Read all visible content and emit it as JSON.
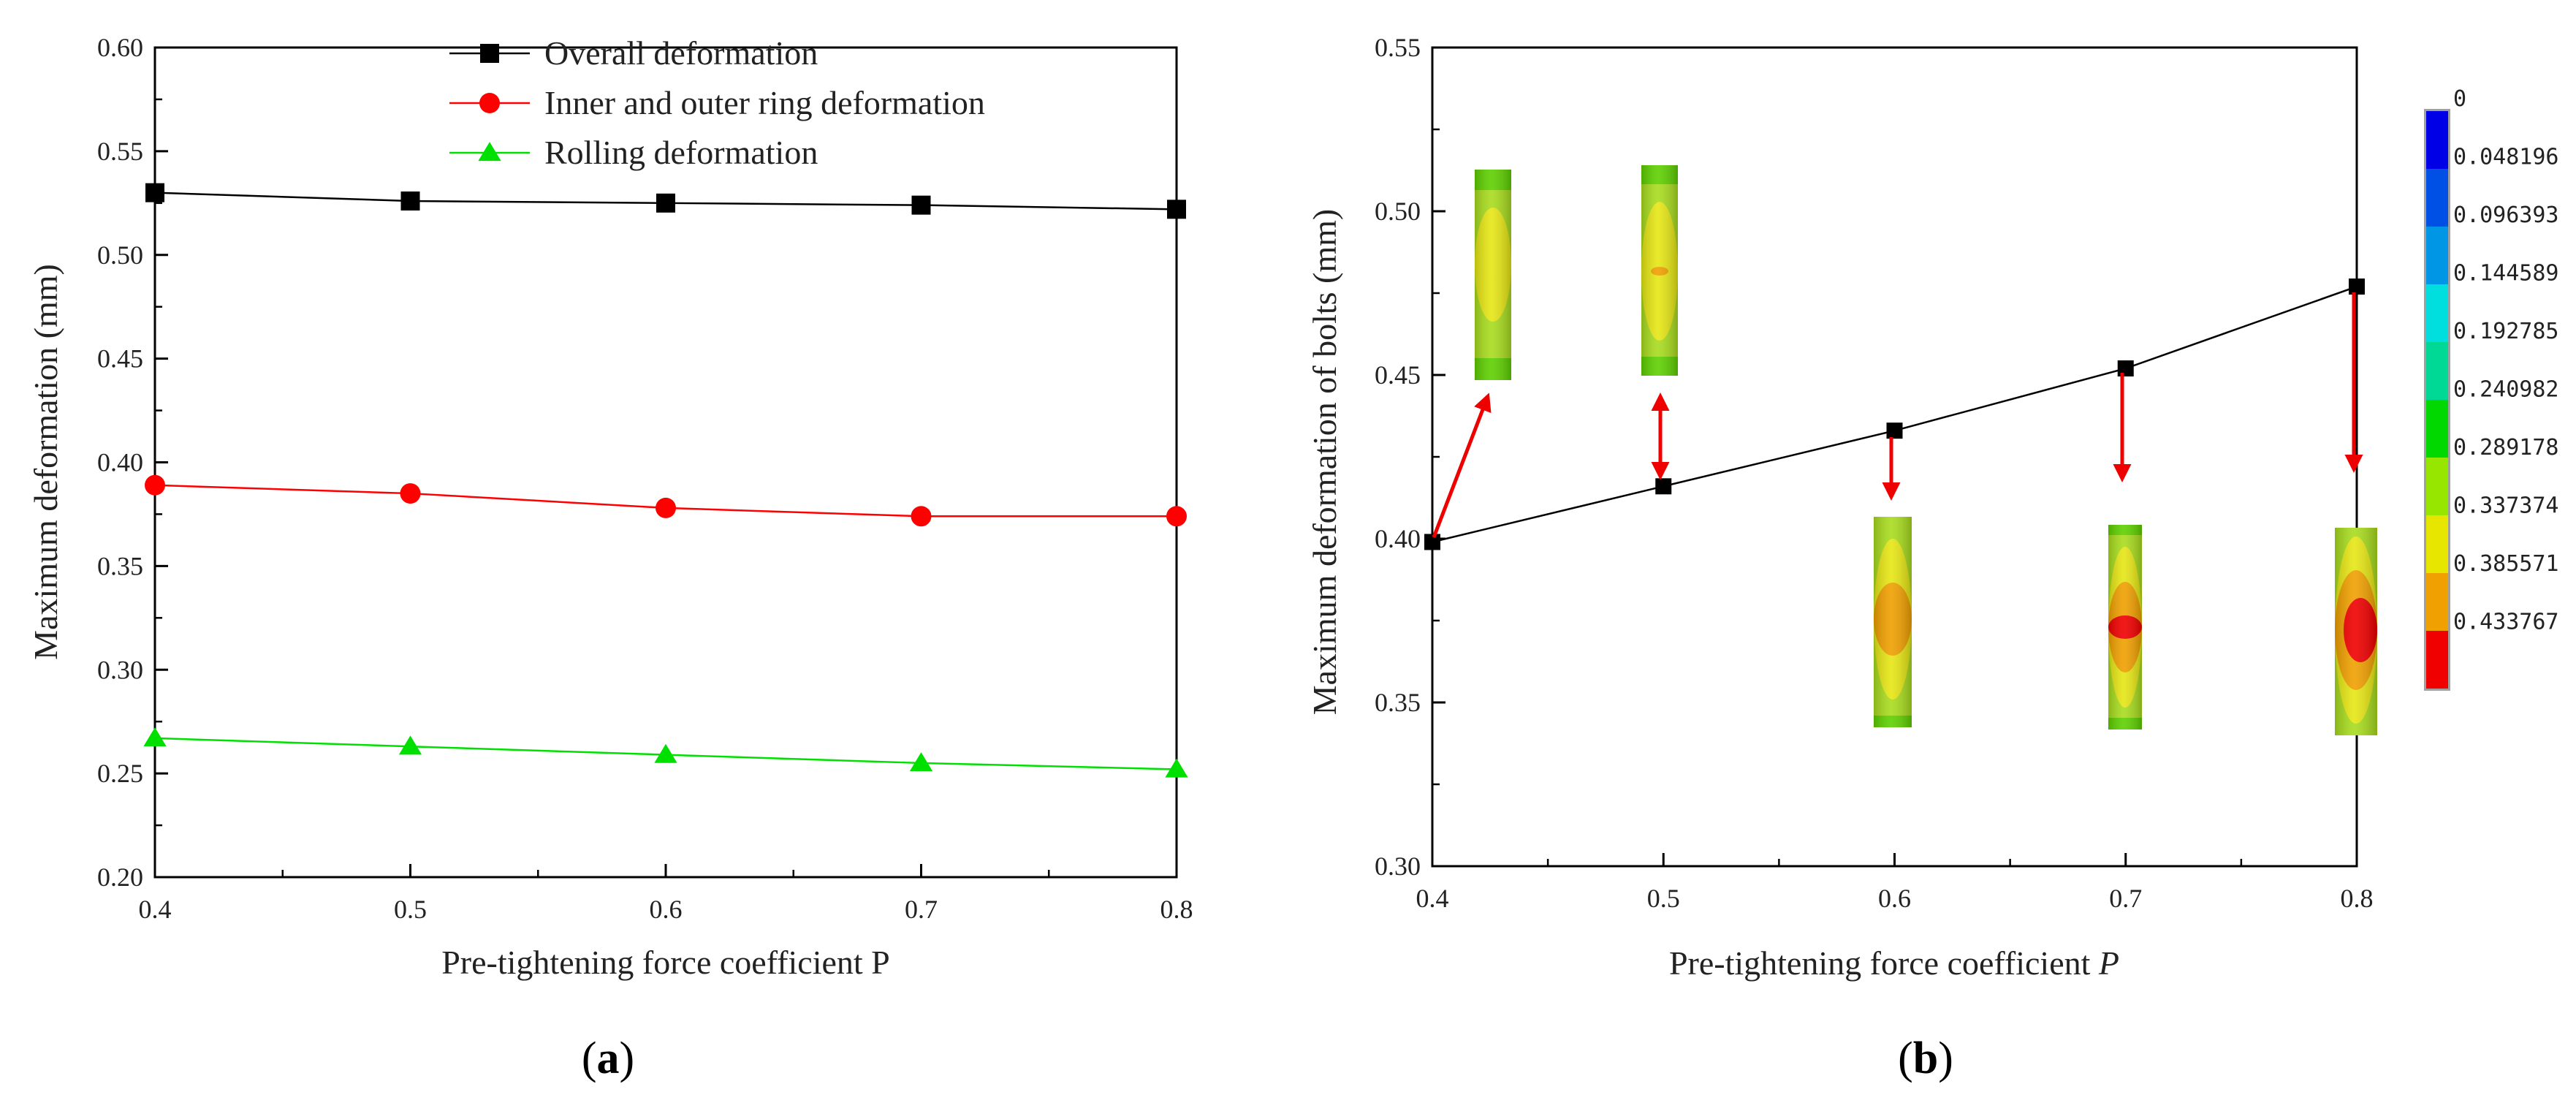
{
  "chart_data": [
    {
      "type": "line",
      "panel_label_pre": "(",
      "panel_label_letter": "a",
      "panel_label_post": ")",
      "xlabel": "Pre-tightening force coefficient P",
      "ylabel": "Maximum deformation (mm)",
      "xlim": [
        0.4,
        0.8
      ],
      "ylim": [
        0.2,
        0.6
      ],
      "xticks": [
        "0.4",
        "0.5",
        "0.6",
        "0.7",
        "0.8"
      ],
      "yticks": [
        "0.20",
        "0.25",
        "0.30",
        "0.35",
        "0.40",
        "0.45",
        "0.50",
        "0.55",
        "0.60"
      ],
      "x": [
        0.4,
        0.5,
        0.6,
        0.7,
        0.8
      ],
      "legend_position": "top-center",
      "series": [
        {
          "name": "Overall deformation",
          "marker": "square",
          "color": "#000000",
          "values": [
            0.53,
            0.526,
            0.525,
            0.524,
            0.522
          ]
        },
        {
          "name": "Inner and outer ring deformation",
          "marker": "circle",
          "color": "#ff0000",
          "values": [
            0.389,
            0.385,
            0.378,
            0.374,
            0.374
          ]
        },
        {
          "name": "Rolling deformation",
          "marker": "triangle",
          "color": "#00e000",
          "values": [
            0.267,
            0.263,
            0.259,
            0.255,
            0.252
          ]
        }
      ]
    },
    {
      "type": "line",
      "panel_label_pre": "(",
      "panel_label_letter": "b",
      "panel_label_post": ")",
      "xlabel_main": "Pre-tightening force coefficient ",
      "xlabel_var": "P",
      "ylabel": "Maximum deformation of bolts (mm)",
      "xlim": [
        0.4,
        0.8
      ],
      "ylim": [
        0.3,
        0.55
      ],
      "xticks": [
        "0.4",
        "0.5",
        "0.6",
        "0.7",
        "0.8"
      ],
      "yticks": [
        "0.30",
        "0.35",
        "0.40",
        "0.45",
        "0.50",
        "0.55"
      ],
      "x": [
        0.4,
        0.5,
        0.6,
        0.7,
        0.8
      ],
      "series": [
        {
          "name": "Maximum deformation of bolts",
          "marker": "square",
          "color": "#000000",
          "values": [
            0.399,
            0.416,
            0.433,
            0.452,
            0.477
          ]
        }
      ],
      "colorbar": {
        "labels": [
          "0",
          "0.048196",
          "0.096393",
          "0.144589",
          "0.192785",
          "0.240982",
          "0.289178",
          "0.337374",
          "0.385571",
          "0.433767"
        ],
        "colors": [
          "#0000e6",
          "#0050e6",
          "#0096e6",
          "#00dede",
          "#00d896",
          "#00d800",
          "#96e600",
          "#e6e600",
          "#f0a000",
          "#f00000"
        ]
      },
      "contour_colors": {
        "green": "#5ed000",
        "yellowgreen": "#a8dc1e",
        "yellow": "#e6e614",
        "orange": "#f0a000",
        "red": "#f00000"
      },
      "annotation_color": "#ee0000"
    }
  ]
}
